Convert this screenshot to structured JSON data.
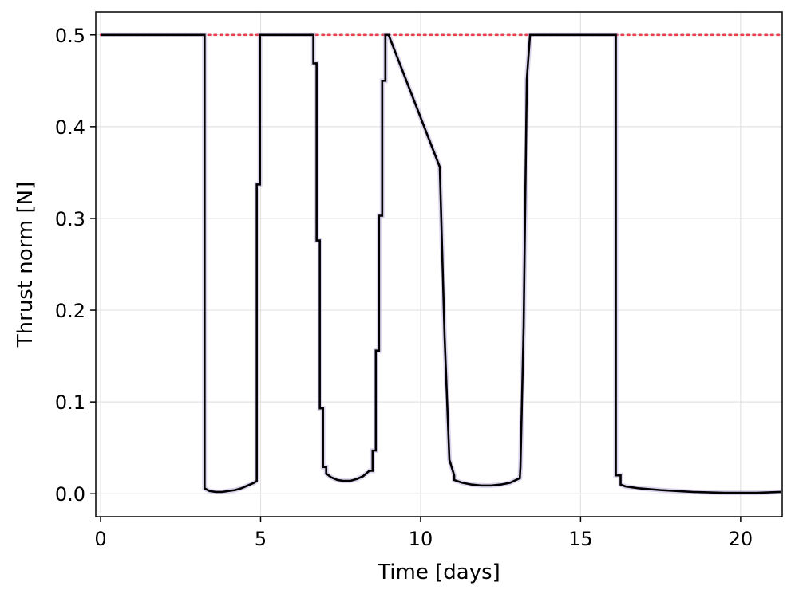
{
  "chart_data": {
    "type": "line",
    "title": "",
    "xlabel": "Time [days]",
    "ylabel": "Thrust norm [N]",
    "xlim": [
      -0.15,
      21.3
    ],
    "ylim": [
      -0.025,
      0.525
    ],
    "xticks": [
      0,
      5,
      10,
      15,
      20
    ],
    "xtick_labels": [
      "0",
      "5",
      "10",
      "15",
      "20"
    ],
    "yticks": [
      0.0,
      0.1,
      0.2,
      0.3,
      0.4,
      0.5
    ],
    "ytick_labels": [
      "0.0",
      "0.1",
      "0.2",
      "0.3",
      "0.4",
      "0.5"
    ],
    "grid": true,
    "legend": "none",
    "colors": {
      "series": "#000000",
      "limit": "#e8404f",
      "shadow": "#9b85c9"
    },
    "series": [
      {
        "style": "step-solid",
        "x": [
          0,
          3.25,
          3.25,
          3.4,
          3.6,
          3.8,
          4.0,
          4.2,
          4.4,
          4.6,
          4.8,
          4.88,
          4.88,
          4.98,
          4.98,
          6.65,
          6.65,
          6.75,
          6.75,
          6.85,
          6.85,
          6.95,
          6.95,
          7.05,
          7.05,
          7.2,
          7.4,
          7.6,
          7.8,
          8.0,
          8.2,
          8.4,
          8.5,
          8.5,
          8.6,
          8.6,
          8.7,
          8.7,
          8.8,
          8.8,
          8.9,
          8.9,
          9.0,
          9.0,
          10.6,
          10.6,
          10.75,
          10.75,
          10.9,
          10.9,
          11.05,
          11.05,
          11.3,
          11.6,
          11.9,
          12.2,
          12.5,
          12.8,
          13.1,
          13.12,
          13.12,
          13.22,
          13.22,
          13.32,
          13.32,
          13.42,
          13.42,
          16.1,
          16.1,
          16.25,
          16.25,
          16.4,
          16.8,
          17.5,
          18.5,
          19.5,
          20.5,
          21.25
        ],
        "y": [
          0.5,
          0.5,
          0.006,
          0.003,
          0.002,
          0.002,
          0.003,
          0.004,
          0.006,
          0.009,
          0.012,
          0.014,
          0.337,
          0.337,
          0.5,
          0.5,
          0.469,
          0.469,
          0.276,
          0.276,
          0.093,
          0.093,
          0.029,
          0.029,
          0.022,
          0.018,
          0.015,
          0.014,
          0.014,
          0.016,
          0.019,
          0.025,
          0.025,
          0.047,
          0.047,
          0.156,
          0.156,
          0.303,
          0.303,
          0.45,
          0.45,
          0.5,
          0.5,
          0.5,
          0.356,
          0.356,
          0.171,
          0.171,
          0.037,
          0.037,
          0.02,
          0.015,
          0.012,
          0.01,
          0.009,
          0.009,
          0.01,
          0.012,
          0.017,
          0.029,
          0.029,
          0.182,
          0.182,
          0.452,
          0.452,
          0.5,
          0.5,
          0.5,
          0.02,
          0.02,
          0.01,
          0.008,
          0.006,
          0.004,
          0.002,
          0.001,
          0.001,
          0.002
        ]
      },
      {
        "style": "dotted",
        "x": [
          0,
          21.25
        ],
        "y": [
          0.5,
          0.5
        ]
      }
    ]
  }
}
